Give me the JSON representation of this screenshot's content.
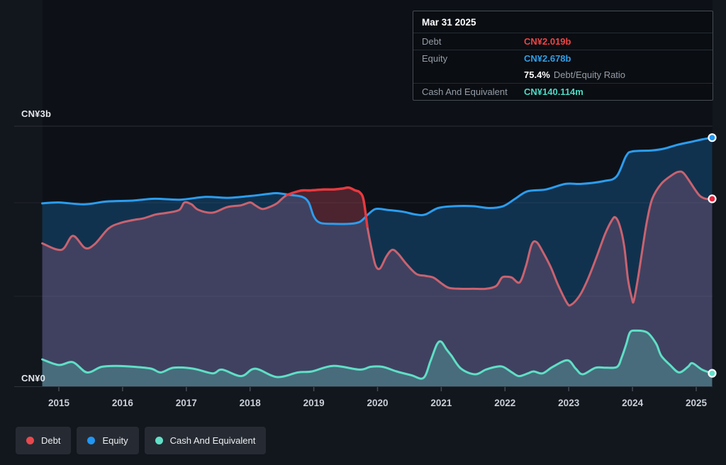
{
  "page": {
    "background": "#12161d"
  },
  "tooltip": {
    "title": "Mar 31 2025",
    "rows": [
      {
        "label": "Debt",
        "value": "CN¥2.019b",
        "color": "#ef4444"
      },
      {
        "label": "Equity",
        "value": "CN¥2.678b",
        "color": "#2f9fe8"
      },
      {
        "label": "Cash And Equivalent",
        "value": "CN¥140.114m",
        "color": "#4dd9c3"
      }
    ],
    "ratio": {
      "value": "75.4%",
      "suffix": "Debt/Equity Ratio"
    }
  },
  "legend": {
    "items": [
      {
        "label": "Debt",
        "color": "#e8484d"
      },
      {
        "label": "Equity",
        "color": "#2196f3"
      },
      {
        "label": "Cash And Equivalent",
        "color": "#63dfc7"
      }
    ]
  },
  "chart_data": {
    "type": "area",
    "unit": "CN¥ billions",
    "x_axis": {
      "ticks": [
        2015,
        2016,
        2017,
        2018,
        2019,
        2020,
        2021,
        2022,
        2023,
        2024,
        2025
      ]
    },
    "y_axis": {
      "top_label": "CN¥3b",
      "zero_label": "CN¥0",
      "ylim": [
        0,
        3
      ]
    },
    "xlim": [
      2014.74,
      2025.26
    ],
    "grid": true,
    "legend_position": "bottom-left",
    "series": [
      {
        "name": "Debt",
        "color": "#e8484d",
        "line_color": "#c96270",
        "highlight_color": "#e8393f",
        "fill": "rgba(218,84,102,0.30)",
        "dot_color": "#e8243f",
        "points": [
          [
            2014.74,
            1.54
          ],
          [
            2015.04,
            1.47
          ],
          [
            2015.22,
            1.62
          ],
          [
            2015.41,
            1.49
          ],
          [
            2015.56,
            1.53
          ],
          [
            2015.78,
            1.7
          ],
          [
            2015.97,
            1.76
          ],
          [
            2016.16,
            1.79
          ],
          [
            2016.33,
            1.81
          ],
          [
            2016.52,
            1.85
          ],
          [
            2016.71,
            1.87
          ],
          [
            2016.89,
            1.9
          ],
          [
            2016.97,
            1.98
          ],
          [
            2017.08,
            1.96
          ],
          [
            2017.19,
            1.9
          ],
          [
            2017.41,
            1.87
          ],
          [
            2017.64,
            1.93
          ],
          [
            2017.86,
            1.95
          ],
          [
            2018.0,
            1.98
          ],
          [
            2018.08,
            1.95
          ],
          [
            2018.19,
            1.91
          ],
          [
            2018.3,
            1.93
          ],
          [
            2018.42,
            1.97
          ],
          [
            2018.5,
            2.02
          ],
          [
            2018.58,
            2.06
          ],
          [
            2018.7,
            2.09
          ],
          [
            2018.82,
            2.11
          ],
          [
            2018.95,
            2.11
          ],
          [
            2019.15,
            2.12
          ],
          [
            2019.3,
            2.12
          ],
          [
            2019.45,
            2.13
          ],
          [
            2019.55,
            2.14
          ],
          [
            2019.65,
            2.11
          ],
          [
            2019.72,
            2.09
          ],
          [
            2019.78,
            2.01
          ],
          [
            2019.84,
            1.72
          ],
          [
            2019.91,
            1.47
          ],
          [
            2019.97,
            1.3
          ],
          [
            2020.04,
            1.27
          ],
          [
            2020.14,
            1.4
          ],
          [
            2020.23,
            1.47
          ],
          [
            2020.32,
            1.43
          ],
          [
            2020.45,
            1.32
          ],
          [
            2020.61,
            1.21
          ],
          [
            2020.75,
            1.19
          ],
          [
            2020.88,
            1.17
          ],
          [
            2021.0,
            1.11
          ],
          [
            2021.12,
            1.06
          ],
          [
            2021.3,
            1.05
          ],
          [
            2021.5,
            1.05
          ],
          [
            2021.7,
            1.05
          ],
          [
            2021.86,
            1.08
          ],
          [
            2021.95,
            1.17
          ],
          [
            2022.03,
            1.18
          ],
          [
            2022.11,
            1.17
          ],
          [
            2022.23,
            1.12
          ],
          [
            2022.33,
            1.3
          ],
          [
            2022.42,
            1.53
          ],
          [
            2022.5,
            1.55
          ],
          [
            2022.6,
            1.44
          ],
          [
            2022.72,
            1.28
          ],
          [
            2022.84,
            1.08
          ],
          [
            2022.98,
            0.89
          ],
          [
            2023.04,
            0.88
          ],
          [
            2023.12,
            0.93
          ],
          [
            2023.2,
            1.01
          ],
          [
            2023.31,
            1.17
          ],
          [
            2023.44,
            1.4
          ],
          [
            2023.57,
            1.64
          ],
          [
            2023.67,
            1.78
          ],
          [
            2023.73,
            1.82
          ],
          [
            2023.8,
            1.73
          ],
          [
            2023.87,
            1.51
          ],
          [
            2023.93,
            1.15
          ],
          [
            2023.99,
            0.95
          ],
          [
            2024.02,
            0.92
          ],
          [
            2024.09,
            1.18
          ],
          [
            2024.17,
            1.54
          ],
          [
            2024.23,
            1.79
          ],
          [
            2024.31,
            2.02
          ],
          [
            2024.45,
            2.18
          ],
          [
            2024.61,
            2.27
          ],
          [
            2024.72,
            2.31
          ],
          [
            2024.81,
            2.29
          ],
          [
            2024.98,
            2.12
          ],
          [
            2025.06,
            2.05
          ],
          [
            2025.15,
            2.02
          ],
          [
            2025.25,
            2.019
          ]
        ]
      },
      {
        "name": "Equity",
        "color": "#2196f3",
        "line_color": "#2b9df0",
        "fill": "rgba(33,150,243,0.25)",
        "dot_color": "#2196f3",
        "points": [
          [
            2014.74,
            1.97
          ],
          [
            2015.0,
            1.98
          ],
          [
            2015.4,
            1.96
          ],
          [
            2015.75,
            1.99
          ],
          [
            2016.16,
            2.0
          ],
          [
            2016.5,
            2.02
          ],
          [
            2016.9,
            2.01
          ],
          [
            2017.3,
            2.04
          ],
          [
            2017.64,
            2.03
          ],
          [
            2018.0,
            2.05
          ],
          [
            2018.26,
            2.07
          ],
          [
            2018.42,
            2.08
          ],
          [
            2018.64,
            2.06
          ],
          [
            2018.82,
            2.04
          ],
          [
            2018.92,
            1.98
          ],
          [
            2019.0,
            1.83
          ],
          [
            2019.1,
            1.76
          ],
          [
            2019.3,
            1.75
          ],
          [
            2019.55,
            1.75
          ],
          [
            2019.72,
            1.77
          ],
          [
            2019.85,
            1.85
          ],
          [
            2019.97,
            1.91
          ],
          [
            2020.15,
            1.9
          ],
          [
            2020.4,
            1.88
          ],
          [
            2020.6,
            1.85
          ],
          [
            2020.75,
            1.85
          ],
          [
            2020.95,
            1.92
          ],
          [
            2021.2,
            1.94
          ],
          [
            2021.5,
            1.94
          ],
          [
            2021.75,
            1.92
          ],
          [
            2021.97,
            1.94
          ],
          [
            2022.16,
            2.02
          ],
          [
            2022.35,
            2.1
          ],
          [
            2022.64,
            2.12
          ],
          [
            2022.95,
            2.18
          ],
          [
            2023.2,
            2.18
          ],
          [
            2023.55,
            2.21
          ],
          [
            2023.75,
            2.26
          ],
          [
            2023.9,
            2.48
          ],
          [
            2024.0,
            2.53
          ],
          [
            2024.3,
            2.54
          ],
          [
            2024.5,
            2.56
          ],
          [
            2024.7,
            2.6
          ],
          [
            2024.9,
            2.63
          ],
          [
            2025.1,
            2.66
          ],
          [
            2025.25,
            2.678
          ]
        ]
      },
      {
        "name": "Cash And Equivalent",
        "color": "#63dfc7",
        "line_color": "#5fdfc6",
        "fill": "rgba(94,222,197,0.28)",
        "dot_color": "#63e0c9",
        "points": [
          [
            2014.74,
            0.29
          ],
          [
            2015.0,
            0.23
          ],
          [
            2015.22,
            0.26
          ],
          [
            2015.44,
            0.15
          ],
          [
            2015.67,
            0.21
          ],
          [
            2015.91,
            0.22
          ],
          [
            2016.19,
            0.21
          ],
          [
            2016.45,
            0.19
          ],
          [
            2016.6,
            0.15
          ],
          [
            2016.8,
            0.2
          ],
          [
            2017.11,
            0.19
          ],
          [
            2017.41,
            0.14
          ],
          [
            2017.56,
            0.18
          ],
          [
            2017.86,
            0.11
          ],
          [
            2018.08,
            0.19
          ],
          [
            2018.42,
            0.1
          ],
          [
            2018.75,
            0.15
          ],
          [
            2018.97,
            0.16
          ],
          [
            2019.3,
            0.22
          ],
          [
            2019.72,
            0.18
          ],
          [
            2019.89,
            0.21
          ],
          [
            2020.08,
            0.21
          ],
          [
            2020.3,
            0.16
          ],
          [
            2020.53,
            0.12
          ],
          [
            2020.72,
            0.09
          ],
          [
            2020.83,
            0.27
          ],
          [
            2020.93,
            0.45
          ],
          [
            2021.0,
            0.48
          ],
          [
            2021.08,
            0.4
          ],
          [
            2021.16,
            0.33
          ],
          [
            2021.31,
            0.19
          ],
          [
            2021.53,
            0.13
          ],
          [
            2021.7,
            0.18
          ],
          [
            2021.86,
            0.21
          ],
          [
            2021.97,
            0.21
          ],
          [
            2022.11,
            0.15
          ],
          [
            2022.22,
            0.11
          ],
          [
            2022.36,
            0.14
          ],
          [
            2022.45,
            0.16
          ],
          [
            2022.59,
            0.14
          ],
          [
            2022.75,
            0.21
          ],
          [
            2022.98,
            0.28
          ],
          [
            2023.11,
            0.19
          ],
          [
            2023.22,
            0.13
          ],
          [
            2023.42,
            0.2
          ],
          [
            2023.59,
            0.2
          ],
          [
            2023.76,
            0.21
          ],
          [
            2023.83,
            0.31
          ],
          [
            2023.9,
            0.45
          ],
          [
            2023.96,
            0.58
          ],
          [
            2024.05,
            0.6
          ],
          [
            2024.23,
            0.58
          ],
          [
            2024.37,
            0.46
          ],
          [
            2024.45,
            0.33
          ],
          [
            2024.59,
            0.23
          ],
          [
            2024.73,
            0.15
          ],
          [
            2024.87,
            0.21
          ],
          [
            2024.94,
            0.25
          ],
          [
            2025.09,
            0.18
          ],
          [
            2025.25,
            0.14
          ]
        ]
      }
    ]
  }
}
